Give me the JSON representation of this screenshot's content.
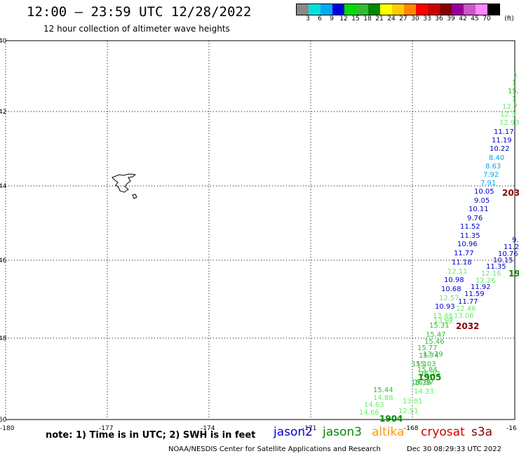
{
  "header": {
    "title": "12:00 — 23:59 UTC 12/28/2022",
    "subtitle": "12 hour collection of altimeter wave heights"
  },
  "colorbar": {
    "unit": "(ft)",
    "labels": [
      "3",
      "6",
      "9",
      "12",
      "15",
      "18",
      "21",
      "24",
      "27",
      "30",
      "33",
      "36",
      "39",
      "42",
      "45",
      "70"
    ],
    "colors": [
      "#888888",
      "#00e0e0",
      "#00aaee",
      "#0000dd",
      "#00dd00",
      "#33bb33",
      "#008800",
      "#ffff00",
      "#ffcc00",
      "#ff8800",
      "#ff0000",
      "#cc0000",
      "#880000",
      "#990099",
      "#cc55cc",
      "#ff88ff",
      "#000000"
    ]
  },
  "map": {
    "lat_labels": [
      "40",
      "42",
      "44",
      "46",
      "48",
      "50"
    ],
    "lon_labels": [
      "-180",
      "-177",
      "-174",
      "-171",
      "-168",
      "-16"
    ]
  },
  "track_a": [
    {
      "v": "1",
      "c": "#66ee66"
    },
    {
      "v": "1",
      "c": "#33bb33"
    },
    {
      "v": "15.",
      "c": "#33bb33"
    },
    {
      "v": "1",
      "c": "#33bb33"
    },
    {
      "v": "12.7",
      "c": "#66ee66"
    },
    {
      "v": "12.3",
      "c": "#66ee66"
    },
    {
      "v": "12.93",
      "c": "#66ee66"
    },
    {
      "v": "11.17",
      "c": "#0000cc"
    },
    {
      "v": "11.19",
      "c": "#0000cc"
    },
    {
      "v": "10.22",
      "c": "#0000cc"
    },
    {
      "v": "8.40",
      "c": "#00aaee"
    },
    {
      "v": "8.63",
      "c": "#00aaee"
    },
    {
      "v": "7.92",
      "c": "#00aaee"
    },
    {
      "v": "7.91",
      "c": "#00aaee"
    },
    {
      "v": "10.05",
      "c": "#0000cc"
    },
    {
      "v": "9.05",
      "c": "#0000cc"
    },
    {
      "v": "10.11",
      "c": "#0000cc"
    },
    {
      "v": "9.76",
      "c": "#0000cc"
    },
    {
      "v": "11.52",
      "c": "#0000cc"
    },
    {
      "v": "11.35",
      "c": "#0000cc"
    },
    {
      "v": "10.96",
      "c": "#0000cc"
    },
    {
      "v": "11.77",
      "c": "#0000cc"
    },
    {
      "v": "11.18",
      "c": "#0000cc"
    },
    {
      "v": "12.11",
      "c": "#66ee66"
    },
    {
      "v": "10.98",
      "c": "#0000cc"
    },
    {
      "v": "10.68",
      "c": "#0000cc"
    },
    {
      "v": "12.57",
      "c": "#66ee66"
    },
    {
      "v": "10.93",
      "c": "#0000cc"
    },
    {
      "v": "13.48",
      "c": "#66ee66"
    },
    {
      "v": "13.97",
      "c": "#66ee66"
    },
    {
      "v": "15.31",
      "c": "#33bb33"
    },
    {
      "v": "15.47",
      "c": "#33bb33"
    },
    {
      "v": "15.46",
      "c": "#33bb33"
    },
    {
      "v": "15.77",
      "c": "#33bb33"
    },
    {
      "v": "15.74",
      "c": "#33bb33"
    },
    {
      "v": "15.1",
      "c": "#33bb33"
    },
    {
      "v": "15.84",
      "c": "#33bb33"
    },
    {
      "v": "14.77",
      "c": "#66ee66"
    },
    {
      "v": "14.74",
      "c": "#66ee66"
    },
    {
      "v": "16.37",
      "c": "#33bb33"
    },
    {
      "v": "15.44",
      "c": "#33bb33"
    },
    {
      "v": "14.88",
      "c": "#66ee66"
    },
    {
      "v": "14.63",
      "c": "#66ee66"
    },
    {
      "v": "14.66",
      "c": "#66ee66"
    }
  ],
  "track_b": [
    {
      "v": "11.92",
      "c": "#0000cc"
    },
    {
      "v": "11.59",
      "c": "#0000cc"
    },
    {
      "v": "11.77",
      "c": "#0000cc"
    },
    {
      "v": "12.46",
      "c": "#66ee66"
    },
    {
      "v": "13.06",
      "c": "#66ee66"
    },
    {
      "v": "13.",
      "c": "#66ee66"
    },
    {
      "v": "13.79",
      "c": "#33bb33"
    },
    {
      "v": "15.03",
      "c": "#33bb33"
    },
    {
      "v": "15.12",
      "c": "#33bb33"
    },
    {
      "v": "15.39",
      "c": "#33bb33"
    },
    {
      "v": "14.33",
      "c": "#66ee66"
    },
    {
      "v": "13.81",
      "c": "#66ee66"
    },
    {
      "v": "12.51",
      "c": "#66ee66"
    }
  ],
  "track_c": [
    {
      "v": "9.",
      "c": "#0000cc"
    },
    {
      "v": "11.2",
      "c": "#0000cc"
    },
    {
      "v": "10.76",
      "c": "#0000cc"
    },
    {
      "v": "10.15",
      "c": "#0000cc"
    },
    {
      "v": "11.35",
      "c": "#0000cc"
    },
    {
      "v": "12.16",
      "c": "#66ee66"
    },
    {
      "v": "12.26",
      "c": "#66ee66"
    }
  ],
  "time_labels": [
    {
      "v": "203",
      "c": "#880000"
    },
    {
      "v": "2032",
      "c": "#880000"
    },
    {
      "v": "19",
      "c": "#008800"
    },
    {
      "v": "1905",
      "c": "#008800"
    },
    {
      "v": "1904",
      "c": "#008800"
    }
  ],
  "footer": {
    "note": "note: 1) Time is in UTC; 2) SWH is in feet",
    "credit": "NOAA/NESDIS Center for Satellite Applications and Research",
    "generated": "Dec 30 08:29:33 UTC 2022"
  },
  "satellites": [
    {
      "name": "jason2",
      "color": "#0000cc"
    },
    {
      "name": "jason3",
      "color": "#008800"
    },
    {
      "name": "altika",
      "color": "#ff9900"
    },
    {
      "name": "cryosat",
      "color": "#cc0000"
    },
    {
      "name": "s3a",
      "color": "#880000"
    }
  ]
}
